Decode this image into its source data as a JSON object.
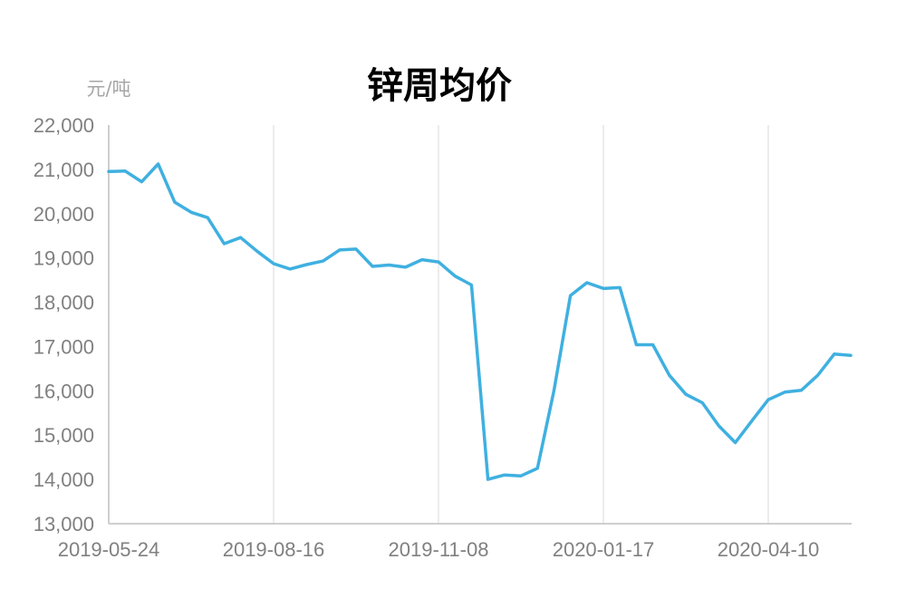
{
  "chart_data": {
    "type": "line",
    "title": "锌周均价",
    "ylabel": "元/吨",
    "xlabel": "",
    "ylim": [
      13000,
      22000
    ],
    "y_ticks": [
      13000,
      14000,
      15000,
      16000,
      17000,
      18000,
      19000,
      20000,
      21000,
      22000
    ],
    "y_tick_labels": [
      "13,000",
      "14,000",
      "15,000",
      "16,000",
      "17,000",
      "18,000",
      "19,000",
      "20,000",
      "21,000",
      "22,000"
    ],
    "x_tick_labels": [
      "2019-05-24",
      "2019-08-16",
      "2019-11-08",
      "2020-01-17",
      "2020-04-10"
    ],
    "x_tick_positions": [
      0,
      10,
      20,
      30,
      40
    ],
    "grid": "vertical",
    "color": "#3fb0e0",
    "series": [
      {
        "values": [
          20950,
          20960,
          20720,
          21120,
          20260,
          20030,
          19910,
          19320,
          19460,
          19150,
          18870,
          18750,
          18850,
          18930,
          19180,
          19200,
          18810,
          18840,
          18790,
          18960,
          18910,
          18590,
          18390,
          14000,
          14100,
          14080,
          14250,
          16000,
          18150,
          18440,
          18310,
          18330,
          17040,
          17040,
          16350,
          15920,
          15730,
          15210,
          14830,
          15320,
          15800,
          15970,
          16010,
          16350,
          16830,
          16800
        ]
      }
    ]
  }
}
